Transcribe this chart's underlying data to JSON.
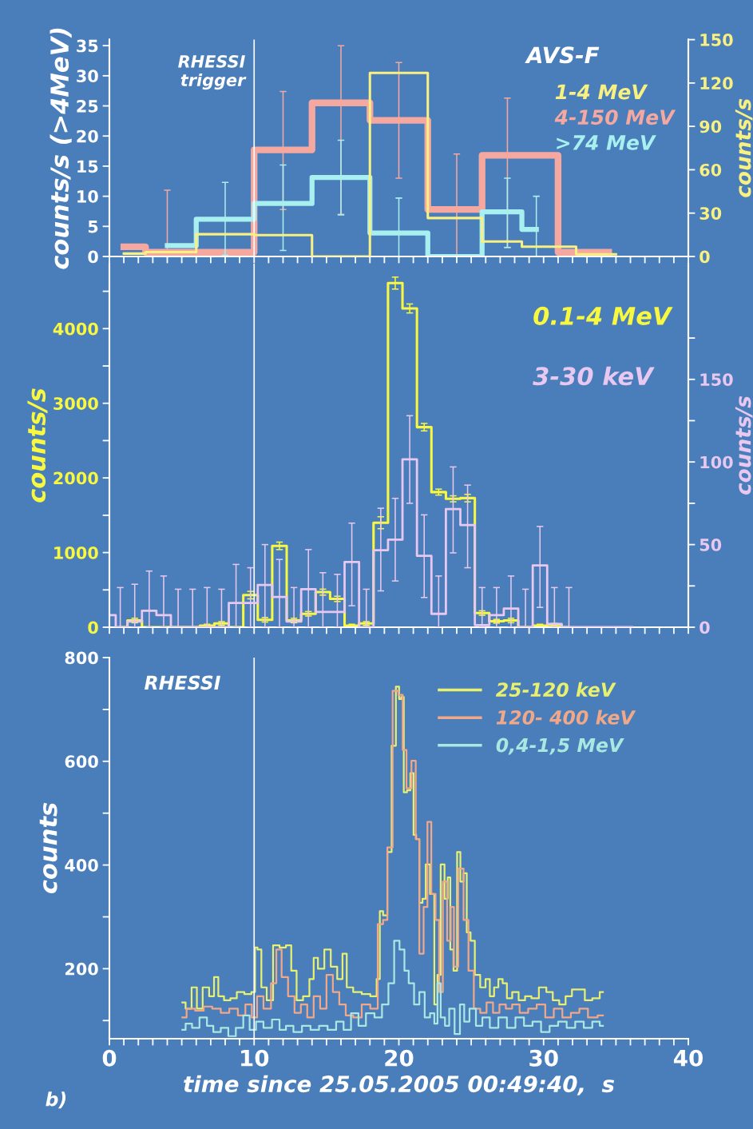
{
  "chart_data": [
    {
      "type": "step",
      "ylabel": "counts/s (>4MeV)",
      "y2label": "counts/s",
      "annotations": [
        "AVS-F"
      ],
      "xlim": [
        0,
        40
      ],
      "xticks": [
        {
          "value": 0,
          "label": null
        },
        {
          "value": 1,
          "label": null
        },
        {
          "value": 2,
          "label": null
        },
        {
          "value": 3,
          "label": null
        },
        {
          "value": 4,
          "label": null
        },
        {
          "value": 5,
          "label": null
        },
        {
          "value": 6,
          "label": null
        },
        {
          "value": 7,
          "label": null
        },
        {
          "value": 8,
          "label": null
        },
        {
          "value": 9,
          "label": null
        },
        {
          "value": 10,
          "label": null
        },
        {
          "value": 11,
          "label": null
        },
        {
          "value": 12,
          "label": null
        },
        {
          "value": 13,
          "label": null
        },
        {
          "value": 14,
          "label": null
        },
        {
          "value": 15,
          "label": null
        },
        {
          "value": 16,
          "label": null
        },
        {
          "value": 17,
          "label": null
        },
        {
          "value": 18,
          "label": null
        },
        {
          "value": 19,
          "label": null
        },
        {
          "value": 20,
          "label": null
        },
        {
          "value": 21,
          "label": null
        },
        {
          "value": 22,
          "label": null
        },
        {
          "value": 23,
          "label": null
        },
        {
          "value": 24,
          "label": null
        },
        {
          "value": 25,
          "label": null
        },
        {
          "value": 26,
          "label": null
        },
        {
          "value": 27,
          "label": null
        },
        {
          "value": 28,
          "label": null
        },
        {
          "value": 29,
          "label": null
        },
        {
          "value": 30,
          "label": null
        },
        {
          "value": 31,
          "label": null
        },
        {
          "value": 32,
          "label": null
        },
        {
          "value": 33,
          "label": null
        },
        {
          "value": 34,
          "label": null
        },
        {
          "value": 35,
          "label": null
        },
        {
          "value": 36,
          "label": null
        },
        {
          "value": 37,
          "label": null
        },
        {
          "value": 38,
          "label": null
        },
        {
          "value": 39,
          "label": null
        },
        {
          "value": 40,
          "label": null
        }
      ],
      "ylim": [
        0,
        36
      ],
      "yticks": [
        0,
        5,
        10,
        15,
        20,
        25,
        30,
        35
      ],
      "y2lim": [
        0,
        150
      ],
      "y2ticks": [
        0,
        30,
        60,
        90,
        120,
        150
      ],
      "tick_labels": "y",
      "grid": false,
      "legend": "top right",
      "ref_lines": [
        {
          "axis": "x",
          "value": 10,
          "label": "RHESSI\ntrigger",
          "color": "#ffffff"
        }
      ],
      "series": [
        {
          "name": "1-4 MeV",
          "color": "#f8f080",
          "axis": "y2",
          "x": [
            1,
            4,
            8,
            12,
            16,
            20,
            24,
            27.5,
            29.5,
            35
          ],
          "values": [
            2,
            3,
            15.4,
            14.8,
            0,
            127,
            26.6,
            10.4,
            6.8,
            1.5
          ]
        },
        {
          "name": "4-150 MeV",
          "color": "#f4a8a0",
          "x": [
            1,
            4,
            8,
            12,
            16,
            20,
            24,
            27.5,
            34.5
          ],
          "values": [
            1.6,
            0.7,
            0.7,
            17.7,
            25.5,
            22.6,
            7.8,
            16.8,
            0.7
          ],
          "errors": [
            null,
            [
              0,
              11
            ],
            null,
            [
              7.8,
              27.4
            ],
            [
              7,
              35
            ],
            [
              13,
              32.2
            ],
            [
              0,
              17
            ],
            [
              1.5,
              26.3
            ],
            null
          ]
        },
        {
          "name": ">74 MeV",
          "color": "#a8f0f0",
          "x": [
            4,
            8,
            12,
            16,
            20,
            24,
            27.5,
            29.5
          ],
          "values": [
            1.8,
            6.2,
            8.8,
            13.1,
            3.9,
            0,
            7.4,
            4.5
          ],
          "errors": [
            null,
            [
              0.2,
              12.3
            ],
            [
              1,
              15.2
            ],
            [
              6.9,
              19.3
            ],
            [
              0,
              9.7
            ],
            null,
            [
              1.5,
              13
            ],
            [
              0,
              10
            ]
          ]
        }
      ]
    },
    {
      "type": "step",
      "ylabel": "counts/s",
      "y2label": "counts/s",
      "xlim": [
        0,
        40
      ],
      "xticks": [
        {
          "value": 0,
          "label": null
        },
        {
          "value": 1,
          "label": null
        },
        {
          "value": 2,
          "label": null
        },
        {
          "value": 3,
          "label": null
        },
        {
          "value": 4,
          "label": null
        },
        {
          "value": 5,
          "label": null
        },
        {
          "value": 6,
          "label": null
        },
        {
          "value": 7,
          "label": null
        },
        {
          "value": 8,
          "label": null
        },
        {
          "value": 9,
          "label": null
        },
        {
          "value": 10,
          "label": null
        },
        {
          "value": 11,
          "label": null
        },
        {
          "value": 12,
          "label": null
        },
        {
          "value": 13,
          "label": null
        },
        {
          "value": 14,
          "label": null
        },
        {
          "value": 15,
          "label": null
        },
        {
          "value": 16,
          "label": null
        },
        {
          "value": 17,
          "label": null
        },
        {
          "value": 18,
          "label": null
        },
        {
          "value": 19,
          "label": null
        },
        {
          "value": 20,
          "label": null
        },
        {
          "value": 21,
          "label": null
        },
        {
          "value": 22,
          "label": null
        },
        {
          "value": 23,
          "label": null
        },
        {
          "value": 24,
          "label": null
        },
        {
          "value": 25,
          "label": null
        },
        {
          "value": 26,
          "label": null
        },
        {
          "value": 27,
          "label": null
        },
        {
          "value": 28,
          "label": null
        },
        {
          "value": 29,
          "label": null
        },
        {
          "value": 30,
          "label": null
        },
        {
          "value": 31,
          "label": null
        },
        {
          "value": 32,
          "label": null
        },
        {
          "value": 33,
          "label": null
        },
        {
          "value": 34,
          "label": null
        },
        {
          "value": 35,
          "label": null
        },
        {
          "value": 36,
          "label": null
        },
        {
          "value": 37,
          "label": null
        },
        {
          "value": 38,
          "label": null
        },
        {
          "value": 39,
          "label": null
        },
        {
          "value": 40,
          "label": null
        }
      ],
      "ylim": [
        0,
        4870
      ],
      "yticks": [
        0,
        {
          "value": 500,
          "label": null
        },
        1000,
        {
          "value": 1500,
          "label": null
        },
        2000,
        {
          "value": 2500,
          "label": null
        },
        3000,
        {
          "value": 3500,
          "label": null
        },
        4000,
        {
          "value": 4500,
          "label": null
        }
      ],
      "y2lim": [
        0,
        220
      ],
      "y2ticks": [
        0,
        {
          "value": 25,
          "label": null
        },
        50,
        {
          "value": 75,
          "label": null
        },
        100,
        {
          "value": 125,
          "label": null
        },
        150,
        {
          "value": 175,
          "label": null
        }
      ],
      "tick_labels": "y",
      "grid": false,
      "legend": "top right",
      "ref_lines": [
        {
          "axis": "x",
          "value": 10,
          "color": "#ffffff"
        }
      ],
      "series": [
        {
          "name": "0.1-4 MeV",
          "color": "#f8f840",
          "x": [
            0.75,
            1.75,
            2.75,
            3.75,
            4.75,
            5.75,
            6.75,
            7.75,
            8.75,
            9.75,
            10.75,
            11.75,
            12.75,
            13.75,
            14.75,
            15.75,
            16.75,
            17.75,
            18.75,
            19.75,
            20.75,
            21.75,
            22.75,
            23.75,
            24.75,
            25.75,
            26.75,
            27.75,
            28.75,
            29.75,
            30.75,
            31.75
          ],
          "values": [
            0,
            90,
            0,
            0,
            0,
            0,
            20,
            50,
            0,
            430,
            100,
            1090,
            90,
            180,
            470,
            380,
            20,
            50,
            1400,
            4610,
            4270,
            2680,
            1810,
            1720,
            1730,
            190,
            80,
            90,
            0,
            20,
            30,
            0
          ],
          "errors": [
            null,
            30,
            null,
            null,
            null,
            null,
            20,
            25,
            null,
            50,
            30,
            50,
            30,
            30,
            40,
            35,
            20,
            25,
            80,
            80,
            60,
            50,
            40,
            40,
            50,
            30,
            25,
            30,
            null,
            20,
            20,
            null
          ]
        },
        {
          "name": "3-30 keV",
          "color": "#e8c8f0",
          "axis": "y2",
          "x": [
            0.125,
            0.75,
            1.75,
            2.75,
            3.75,
            4.75,
            5.75,
            6.75,
            7.75,
            8.75,
            9.75,
            10.75,
            11.75,
            12.75,
            13.75,
            14.75,
            15.75,
            16.75,
            17.75,
            18.75,
            19.75,
            20.75,
            21.75,
            22.75,
            23.75,
            24.75,
            25.75,
            26.75,
            27.75,
            28.75,
            29.75,
            30.75,
            31.75,
            36.125
          ],
          "values": [
            7.3,
            0,
            3.4,
            10,
            7.3,
            0,
            0,
            0,
            0,
            14.7,
            14.7,
            25.6,
            18.3,
            3.4,
            23,
            9.2,
            9.2,
            39.5,
            0,
            46.6,
            53,
            101.6,
            43.2,
            8.1,
            71.5,
            61.8,
            1.3,
            7.3,
            11.3,
            0,
            37.4,
            2,
            0,
            0
          ],
          "errors": [
            null,
            [
              0,
              24
            ],
            [
              0,
              26
            ],
            [
              0,
              34
            ],
            [
              0,
              31
            ],
            [
              0,
              23
            ],
            [
              0,
              23
            ],
            [
              0,
              24
            ],
            [
              0,
              23
            ],
            [
              0,
              38
            ],
            [
              0,
              36
            ],
            [
              0,
              50
            ],
            [
              0,
              41
            ],
            [
              0,
              24
            ],
            [
              0,
              47
            ],
            [
              0,
              33
            ],
            [
              0,
              32
            ],
            [
              13,
              63
            ],
            [
              0,
              23
            ],
            [
              22,
              72
            ],
            [
              28,
              78
            ],
            [
              75,
              128
            ],
            [
              18,
              68
            ],
            [
              0,
              31
            ],
            [
              45,
              97
            ],
            [
              36,
              86
            ],
            [
              0,
              24
            ],
            [
              0,
              24
            ],
            [
              0,
              31
            ],
            [
              0,
              23
            ],
            [
              12,
              61
            ],
            [
              0,
              24
            ],
            [
              0,
              24
            ],
            null
          ]
        }
      ]
    },
    {
      "type": "step",
      "ylabel": "counts",
      "xlabel": "time since 25.05.2005 00:49:40,  s",
      "annotations": [
        "RHESSI",
        "b)"
      ],
      "xlim": [
        0,
        40
      ],
      "xticks": [
        0,
        {
          "value": 1,
          "label": null
        },
        {
          "value": 2,
          "label": null
        },
        {
          "value": 3,
          "label": null
        },
        {
          "value": 4,
          "label": null
        },
        {
          "value": 5,
          "label": null
        },
        {
          "value": 6,
          "label": null
        },
        {
          "value": 7,
          "label": null
        },
        {
          "value": 8,
          "label": null
        },
        {
          "value": 9,
          "label": null
        },
        10,
        {
          "value": 11,
          "label": null
        },
        {
          "value": 12,
          "label": null
        },
        {
          "value": 13,
          "label": null
        },
        {
          "value": 14,
          "label": null
        },
        {
          "value": 15,
          "label": null
        },
        {
          "value": 16,
          "label": null
        },
        {
          "value": 17,
          "label": null
        },
        {
          "value": 18,
          "label": null
        },
        {
          "value": 19,
          "label": null
        },
        20,
        {
          "value": 21,
          "label": null
        },
        {
          "value": 22,
          "label": null
        },
        {
          "value": 23,
          "label": null
        },
        {
          "value": 24,
          "label": null
        },
        {
          "value": 25,
          "label": null
        },
        {
          "value": 26,
          "label": null
        },
        {
          "value": 27,
          "label": null
        },
        {
          "value": 28,
          "label": null
        },
        {
          "value": 29,
          "label": null
        },
        30,
        {
          "value": 31,
          "label": null
        },
        {
          "value": 32,
          "label": null
        },
        {
          "value": 33,
          "label": null
        },
        {
          "value": 34,
          "label": null
        },
        {
          "value": 35,
          "label": null
        },
        {
          "value": 36,
          "label": null
        },
        {
          "value": 37,
          "label": null
        },
        {
          "value": 38,
          "label": null
        },
        {
          "value": 39,
          "label": null
        },
        40
      ],
      "ylim": [
        65,
        800
      ],
      "yticks": [
        {
          "value": 100,
          "label": null
        },
        200,
        {
          "value": 300,
          "label": null
        },
        400,
        {
          "value": 500,
          "label": null
        },
        600,
        {
          "value": 700,
          "label": null
        },
        800
      ],
      "grid": false,
      "legend": "top right",
      "ref_lines": [
        {
          "axis": "x",
          "value": 10,
          "color": "#ffffff"
        }
      ],
      "series": [
        {
          "name": "25-120 keV",
          "color": "#e8f070",
          "x": [
            5.04,
            5.49,
            5.87,
            6.22,
            6.67,
            7.11,
            7.35,
            7.7,
            8.14,
            8.58,
            9.03,
            9.62,
            10.0,
            10.12,
            10.35,
            10.65,
            11.09,
            11.53,
            11.98,
            12.42,
            12.71,
            13.16,
            13.6,
            14.04,
            14.19,
            14.63,
            15.07,
            15.52,
            15.96,
            16.25,
            16.55,
            17.14,
            17.73,
            18.32,
            18.61,
            18.76,
            19.06,
            19.35,
            19.65,
            19.94,
            20.09,
            20.24,
            20.44,
            20.68,
            20.91,
            21.12,
            21.27,
            21.56,
            21.71,
            22.01,
            22.3,
            22.6,
            22.74,
            23.04,
            23.27,
            23.48,
            23.63,
            23.92,
            24.13,
            24.37,
            24.57,
            24.81,
            25.1,
            25.4,
            25.84,
            26.14,
            26.43,
            26.73,
            27.02,
            27.32,
            27.61,
            28.05,
            28.5,
            28.94,
            29.38,
            29.97,
            30.41,
            30.86,
            31.3,
            31.74,
            32.18,
            32.63,
            33.07,
            33.66,
            34.1
          ],
          "values": [
            135,
            123,
            164,
            123,
            164,
            147,
            184,
            147,
            139,
            143,
            155,
            151,
            155,
            241,
            237,
            164,
            139,
            245,
            241,
            245,
            196,
            139,
            147,
            180,
            221,
            200,
            237,
            204,
            180,
            229,
            164,
            155,
            151,
            147,
            180,
            311,
            303,
            425,
            630,
            744,
            720,
            724,
            540,
            544,
            577,
            458,
            450,
            327,
            335,
            401,
            344,
            131,
            188,
            401,
            335,
            376,
            237,
            196,
            425,
            368,
            384,
            270,
            254,
            188,
            164,
            180,
            147,
            164,
            180,
            172,
            143,
            155,
            139,
            147,
            143,
            164,
            155,
            139,
            131,
            147,
            160,
            160,
            139,
            143,
            155
          ]
        },
        {
          "name": "120- 400 keV",
          "color": "#f0a888",
          "x": [
            5.04,
            5.63,
            6.22,
            6.81,
            7.4,
            7.99,
            8.58,
            9.17,
            9.62,
            10.06,
            10.35,
            10.94,
            11.39,
            11.68,
            12.12,
            12.57,
            13.01,
            13.45,
            13.89,
            14.34,
            14.78,
            15.22,
            15.66,
            16.11,
            16.55,
            17.14,
            17.73,
            18.32,
            18.76,
            19.06,
            19.35,
            19.79,
            20.15,
            20.38,
            20.68,
            21.06,
            21.27,
            21.56,
            21.86,
            22.09,
            22.39,
            22.68,
            22.89,
            23.19,
            23.48,
            23.69,
            23.92,
            24.28,
            24.66,
            24.96,
            25.4,
            25.84,
            26.28,
            26.73,
            27.17,
            27.61,
            28.05,
            28.64,
            29.23,
            29.82,
            30.41,
            31.0,
            31.59,
            32.18,
            32.77,
            33.36,
            34.1
          ],
          "values": [
            106,
            123,
            119,
            127,
            123,
            115,
            123,
            110,
            131,
            106,
            147,
            123,
            172,
            237,
            184,
            147,
            115,
            131,
            106,
            147,
            123,
            188,
            155,
            131,
            110,
            106,
            131,
            123,
            286,
            294,
            434,
            736,
            728,
            622,
            548,
            601,
            450,
            229,
            319,
            483,
            344,
            294,
            155,
            368,
            254,
            319,
            204,
            393,
            294,
            196,
            123,
            115,
            135,
            115,
            131,
            123,
            131,
            115,
            123,
            131,
            106,
            123,
            106,
            115,
            123,
            106,
            110
          ]
        },
        {
          "name": "0,4-1,5 MeV",
          "color": "#a8e8e0",
          "x": [
            5.04,
            5.49,
            5.93,
            6.52,
            6.96,
            7.4,
            7.99,
            8.44,
            9.03,
            9.47,
            9.91,
            10.35,
            10.94,
            11.53,
            11.98,
            12.42,
            13.01,
            13.6,
            14.19,
            14.78,
            15.37,
            15.96,
            16.4,
            16.99,
            17.43,
            18.02,
            18.61,
            19.06,
            19.5,
            19.85,
            20.24,
            20.53,
            20.83,
            21.27,
            21.56,
            22.01,
            22.3,
            22.6,
            22.74,
            23.04,
            23.33,
            23.63,
            24.07,
            24.37,
            24.66,
            25.1,
            25.55,
            25.99,
            26.58,
            27.17,
            27.76,
            28.35,
            28.94,
            29.53,
            30.12,
            30.71,
            31.3,
            31.89,
            32.48,
            33.07,
            33.66,
            34.1
          ],
          "values": [
            82,
            94,
            86,
            106,
            90,
            78,
            86,
            70,
            86,
            110,
            82,
            98,
            86,
            102,
            82,
            90,
            78,
            90,
            82,
            90,
            82,
            98,
            82,
            114,
            90,
            114,
            106,
            131,
            172,
            254,
            237,
            196,
            172,
            131,
            155,
            106,
            114,
            94,
            172,
            106,
            90,
            123,
            74,
            131,
            98,
            123,
            90,
            106,
            86,
            106,
            86,
            106,
            90,
            98,
            78,
            90,
            98,
            86,
            98,
            86,
            98,
            90
          ]
        }
      ]
    }
  ]
}
